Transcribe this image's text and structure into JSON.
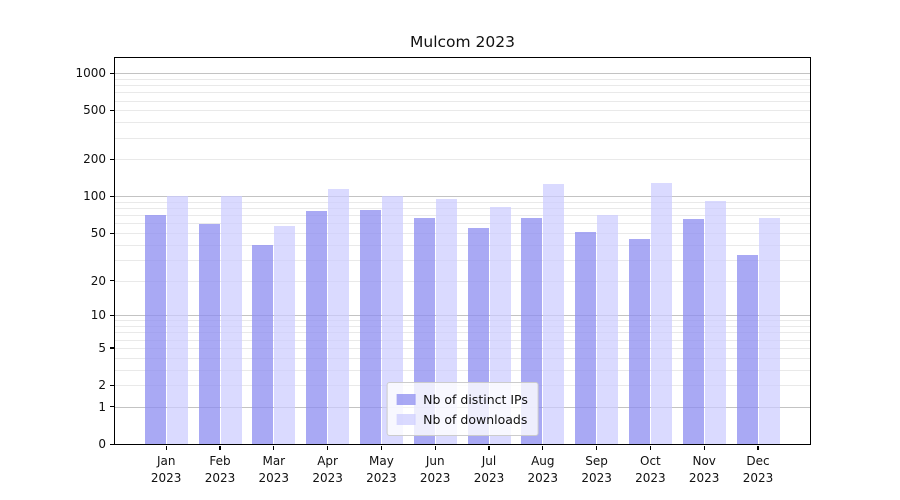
{
  "title": "Mulcom 2023",
  "chart_data": {
    "type": "bar",
    "title": "Mulcom 2023",
    "xlabel": "",
    "ylabel": "",
    "y_scale": "symlog (position proportional to ln(1+value))",
    "grid": true,
    "categories": [
      "Jan 2023",
      "Feb 2023",
      "Mar 2023",
      "Apr 2023",
      "May 2023",
      "Jun 2023",
      "Jul 2023",
      "Aug 2023",
      "Sep 2023",
      "Oct 2023",
      "Nov 2023",
      "Dec 2023"
    ],
    "series": [
      {
        "name": "Nb of distinct IPs",
        "color": "#8c8cf0",
        "fill_opacity": 0.75,
        "values": [
          70,
          59,
          40,
          76,
          78,
          67,
          55,
          66,
          51,
          45,
          65,
          33
        ]
      },
      {
        "name": "Nb of downloads",
        "color": "#ccccff",
        "fill_opacity": 0.72,
        "values": [
          101,
          100,
          57,
          115,
          100,
          95,
          82,
          126,
          70,
          129,
          92,
          67
        ]
      }
    ],
    "y_ticks": [
      0,
      1,
      2,
      5,
      10,
      20,
      50,
      100,
      200,
      500,
      1000
    ],
    "y_minor_gridlines": "2-9 within each decade (2..9, 20..90, 200..900)",
    "ylim": [
      0,
      1330
    ],
    "legend_position": "lower center"
  },
  "colors": {
    "background": "#ffffff",
    "axis": "#000000",
    "text": "#111111",
    "major_grid": "#c3c3c3",
    "minor_grid": "#e9e9e9",
    "legend_border": "#cccccc"
  }
}
